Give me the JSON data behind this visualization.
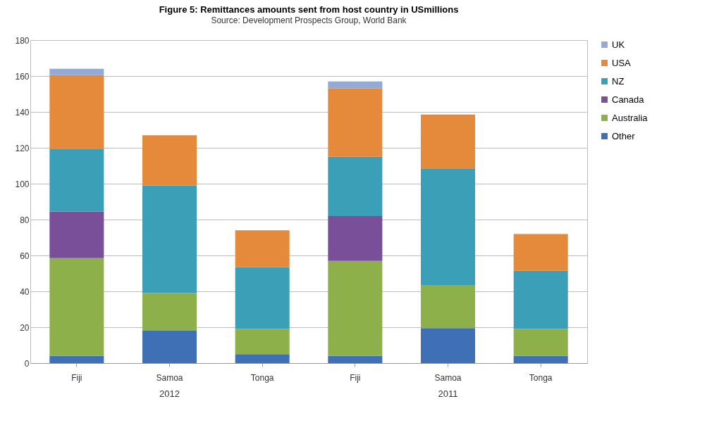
{
  "chart_data": {
    "type": "bar",
    "title": "Figure 5: Remittances amounts sent from host country in USmillions",
    "subtitle": "Source: Development Prospects Group, World Bank",
    "categories": [
      "Fiji",
      "Samoa",
      "Tonga",
      "Fiji",
      "Samoa",
      "Tonga"
    ],
    "annotations": [
      "2012",
      "2011"
    ],
    "stacked": true,
    "series": [
      {
        "name": "Other",
        "color": "#3f6fb5",
        "values": [
          4,
          18,
          5,
          4,
          19.5,
          4
        ]
      },
      {
        "name": "Australia",
        "color": "#8db04a",
        "values": [
          54.5,
          21,
          14,
          53,
          24,
          15
        ]
      },
      {
        "name": "Canada",
        "color": "#7a4f9a",
        "values": [
          26,
          null,
          null,
          25,
          null,
          null
        ]
      },
      {
        "name": "NZ",
        "color": "#3a9fb7",
        "values": [
          35,
          60,
          34.5,
          33,
          65,
          32.5
        ]
      },
      {
        "name": "USA",
        "color": "#e58a3a",
        "values": [
          41,
          28,
          20.5,
          38,
          30,
          20.5
        ]
      },
      {
        "name": "UK",
        "color": "#93a9d6",
        "values": [
          3.5,
          null,
          null,
          4,
          null,
          null
        ]
      }
    ],
    "ylim": [
      0,
      180
    ],
    "yticks": [
      0,
      20,
      40,
      60,
      80,
      100,
      120,
      140,
      160,
      180
    ],
    "grid": "y",
    "legend": "right"
  }
}
